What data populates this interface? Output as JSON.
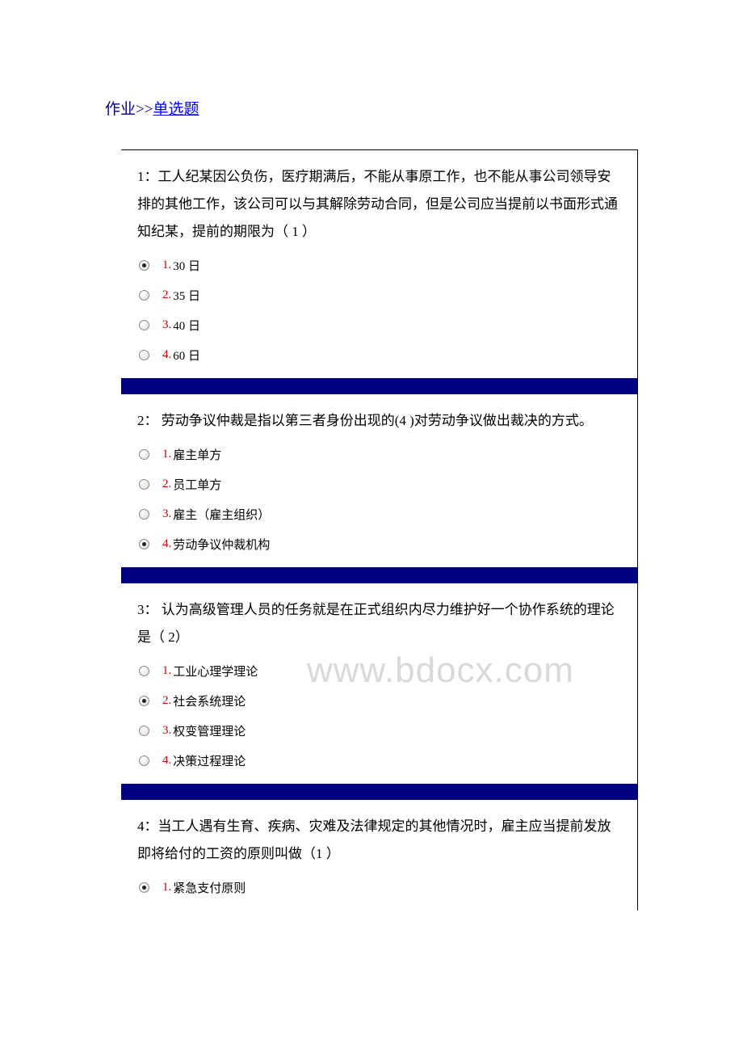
{
  "breadcrumb": {
    "prefix": "作业>>",
    "link_text": "单选题"
  },
  "watermark": "www.bdocx.com",
  "divider_color": "#000080",
  "questions": [
    {
      "number": "1：",
      "text": "工人纪某因公负伤，医疗期满后，不能从事原工作，也不能从事公司领导安排的其他工作，该公司可以与其解除劳动合同，但是公司应当提前以书面形式通知纪某，提前的期限为（ 1 ）",
      "selected": 0,
      "options": [
        {
          "num": "1.",
          "text": "30 日"
        },
        {
          "num": "2.",
          "text": "35 日"
        },
        {
          "num": "3.",
          "text": "40 日"
        },
        {
          "num": "4.",
          "text": "60 日"
        }
      ]
    },
    {
      "number": "2：",
      "text": " 劳动争议仲裁是指以第三者身份出现的(4   )对劳动争议做出裁决的方式。",
      "selected": 3,
      "options": [
        {
          "num": "1.",
          "text": "雇主单方"
        },
        {
          "num": "2.",
          "text": "员工单方"
        },
        {
          "num": "3.",
          "text": "雇主（雇主组织）"
        },
        {
          "num": "4.",
          "text": "劳动争议仲裁机构"
        }
      ]
    },
    {
      "number": "3：",
      "text": " 认为高级管理人员的任务就是在正式组织内尽力维护好一个协作系统的理论是（   2）",
      "selected": 1,
      "options": [
        {
          "num": "1.",
          "text": "工业心理学理论"
        },
        {
          "num": "2.",
          "text": "社会系统理论"
        },
        {
          "num": "3.",
          "text": "权变管理理论"
        },
        {
          "num": "4.",
          "text": "决策过程理论"
        }
      ]
    },
    {
      "number": "4：",
      "text": "当工人遇有生育、疾病、灾难及法律规定的其他情况时，雇主应当提前发放即将给付的工资的原则叫做（1   ）",
      "selected": 0,
      "options": [
        {
          "num": "1.",
          "text": "紧急支付原则"
        }
      ]
    }
  ]
}
